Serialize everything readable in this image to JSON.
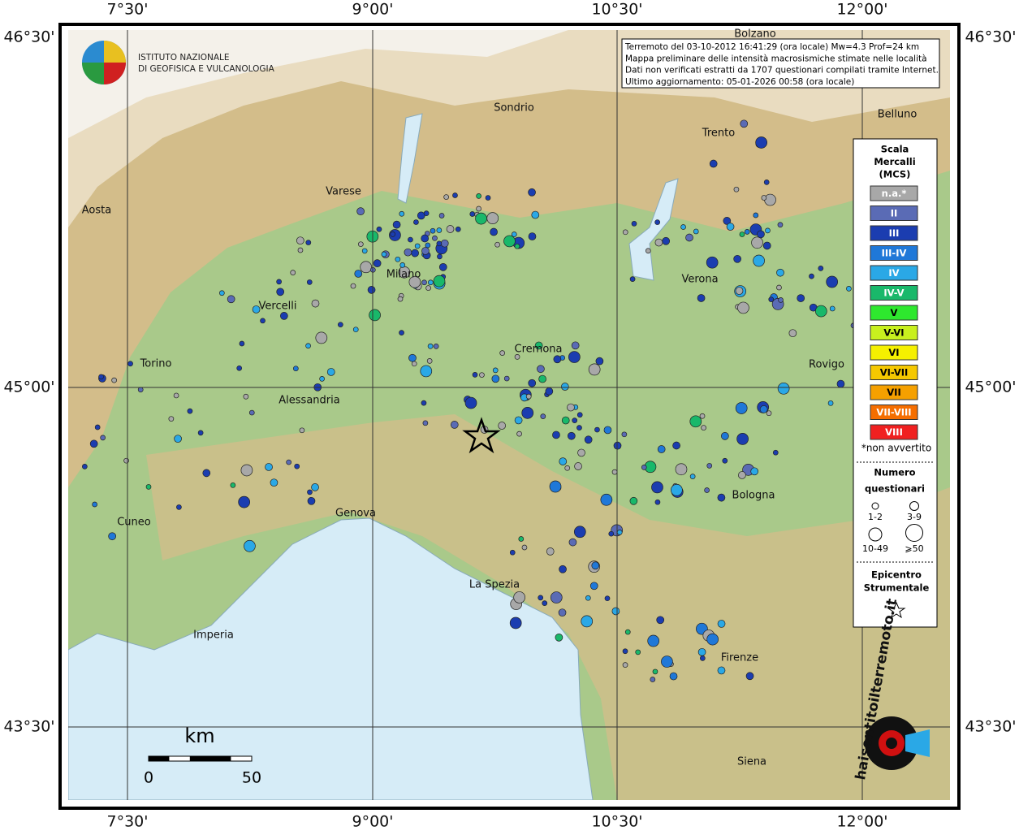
{
  "map": {
    "lon_labels": [
      "7°30'",
      "9°00'",
      "10°30'",
      "12°00'"
    ],
    "lat_labels": [
      "46°30'",
      "45°00'",
      "43°30'"
    ],
    "cities": [
      {
        "label": "Bolzano"
      },
      {
        "label": "Sondrio"
      },
      {
        "label": "Belluno"
      },
      {
        "label": "Trento"
      },
      {
        "label": "Varese"
      },
      {
        "label": "Aosta"
      },
      {
        "label": "Milano"
      },
      {
        "label": "Verona"
      },
      {
        "label": "Vercelli"
      },
      {
        "label": "Cremona"
      },
      {
        "label": "Rovigo"
      },
      {
        "label": "Torino"
      },
      {
        "label": "Alessandria"
      },
      {
        "label": "Bologna"
      },
      {
        "label": "Cuneo"
      },
      {
        "label": "Genova"
      },
      {
        "label": "La Spezia"
      },
      {
        "label": "Imperia"
      },
      {
        "label": "Firenze"
      },
      {
        "label": "Siena"
      }
    ],
    "info": [
      "Terremoto del 03-10-2012 16:41:29 (ora locale) Mw=4.3 Prof=24 km",
      "Mappa preliminare delle intensità macrosismiche stimate nelle località",
      "Dati non verificati estratti da 1707 questionari compilati tramite Internet.",
      "Ultimo aggiornamento: 05-01-2026 00:58 (ora locale)"
    ],
    "legend": {
      "title": [
        "Scala",
        "Mercalli",
        "(MCS)"
      ],
      "classes": [
        {
          "label": "n.a.*",
          "color": "#a8a8a8"
        },
        {
          "label": "II",
          "color": "#5a6bb5"
        },
        {
          "label": "III",
          "color": "#1b3db0"
        },
        {
          "label": "III-IV",
          "color": "#1f78d8"
        },
        {
          "label": "IV",
          "color": "#2aa8e6"
        },
        {
          "label": "IV-V",
          "color": "#19b86a"
        },
        {
          "label": "V",
          "color": "#2ee82e"
        },
        {
          "label": "V-VI",
          "color": "#c8f01e"
        },
        {
          "label": "VI",
          "color": "#f5f000"
        },
        {
          "label": "VI-VII",
          "color": "#f5c800"
        },
        {
          "label": "VII",
          "color": "#f5a000"
        },
        {
          "label": "VII-VIII",
          "color": "#f56e00"
        },
        {
          "label": "VIII",
          "color": "#f02020"
        }
      ],
      "note": "*non avvertito",
      "size_title": [
        "Numero",
        "questionari"
      ],
      "sizes": [
        "1-2",
        "3-9",
        "10-49",
        "⩾50"
      ],
      "epicenter_title": [
        "Epicentro",
        "Strumentale"
      ]
    },
    "scale": {
      "unit": "km",
      "ticks": [
        "0",
        "50"
      ]
    }
  },
  "logo": {
    "lines": [
      "ISTITUTO NAZIONALE",
      "DI GEOFISICA E VULCANOLOGIA"
    ]
  },
  "site_logo": "haisentitoilterremoto.it"
}
